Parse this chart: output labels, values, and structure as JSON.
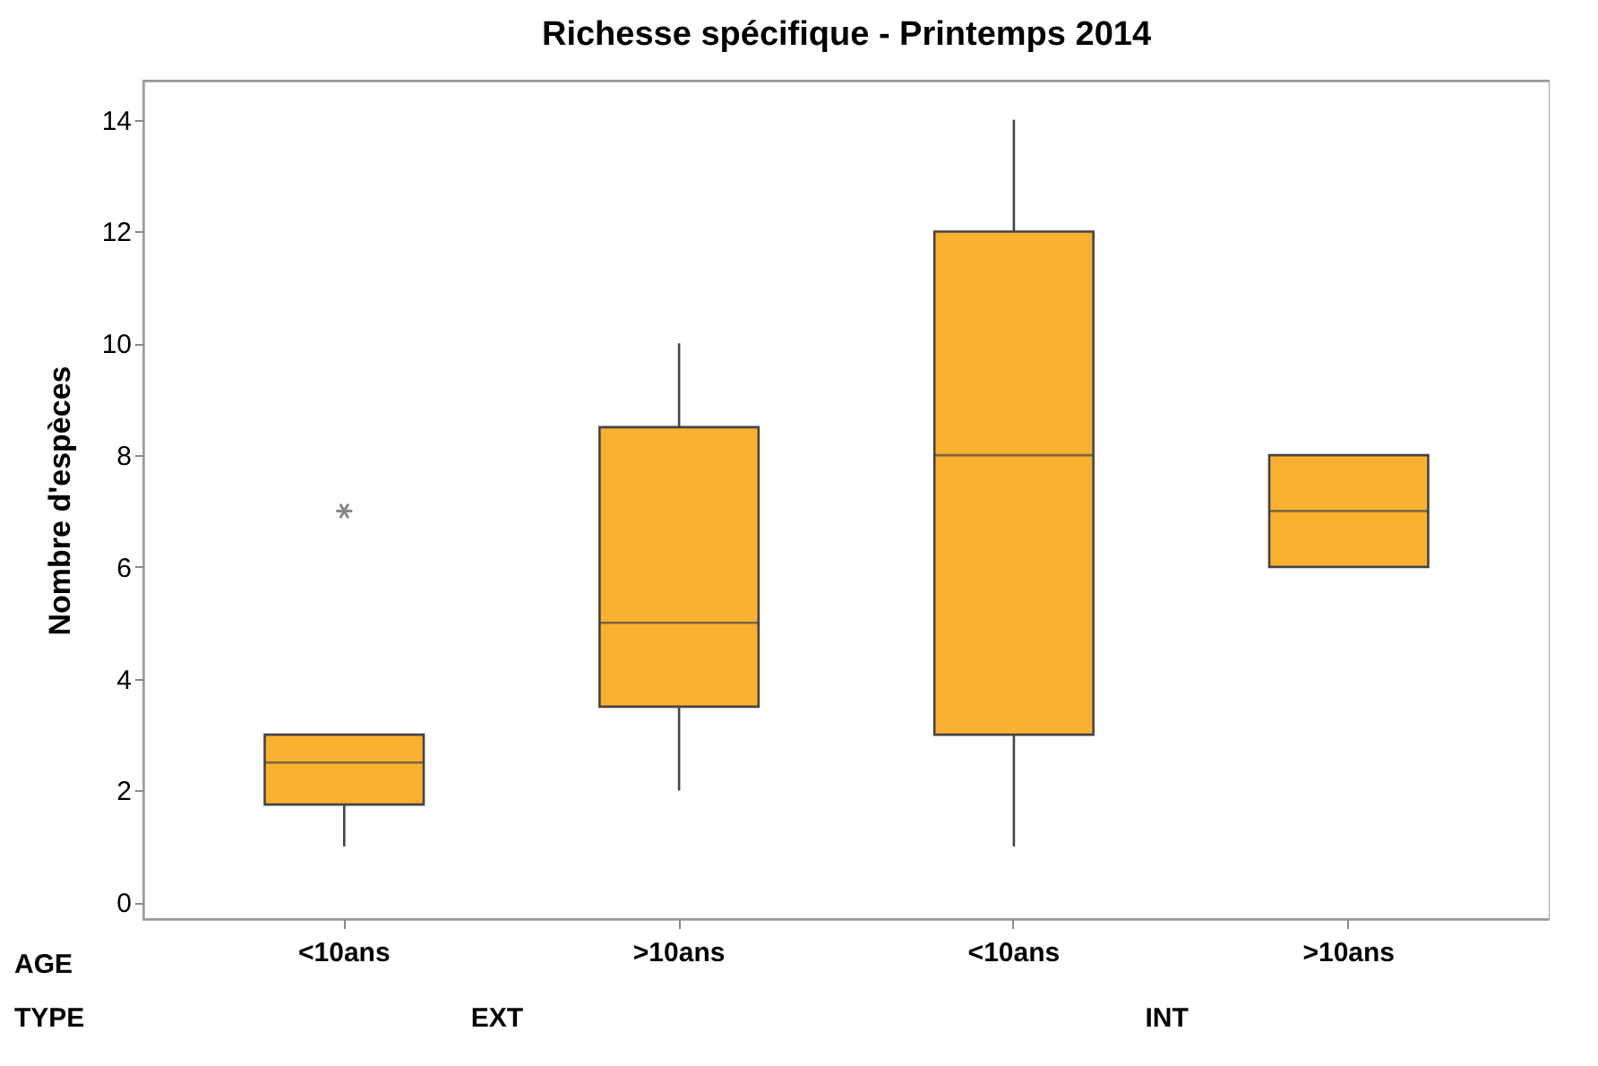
{
  "chart_data": {
    "type": "box",
    "title": "Richesse spécifique - Printemps 2014",
    "ylabel": "Nombre d'espèces",
    "categories": [
      "<10ans",
      ">10ans",
      "<10ans",
      ">10ans"
    ],
    "boxes": [
      {
        "low": 1,
        "q1": 1.75,
        "median": 2.5,
        "q3": 3,
        "high": 3,
        "outliers": [
          7
        ]
      },
      {
        "low": 2,
        "q1": 3.5,
        "median": 5,
        "q3": 8.5,
        "high": 10
      },
      {
        "low": 1,
        "q1": 3,
        "median": 8,
        "q3": 12,
        "high": 14
      },
      {
        "low": 6,
        "q1": 6,
        "median": 7,
        "q3": 8,
        "high": 8
      }
    ],
    "color": "#fbb130",
    "ylim": [
      -0.3,
      14.7
    ],
    "yticks": [
      0,
      2,
      4,
      6,
      8,
      10,
      12,
      14
    ],
    "annotations": [
      "AGE",
      "TYPE",
      "EXT",
      "INT"
    ]
  }
}
